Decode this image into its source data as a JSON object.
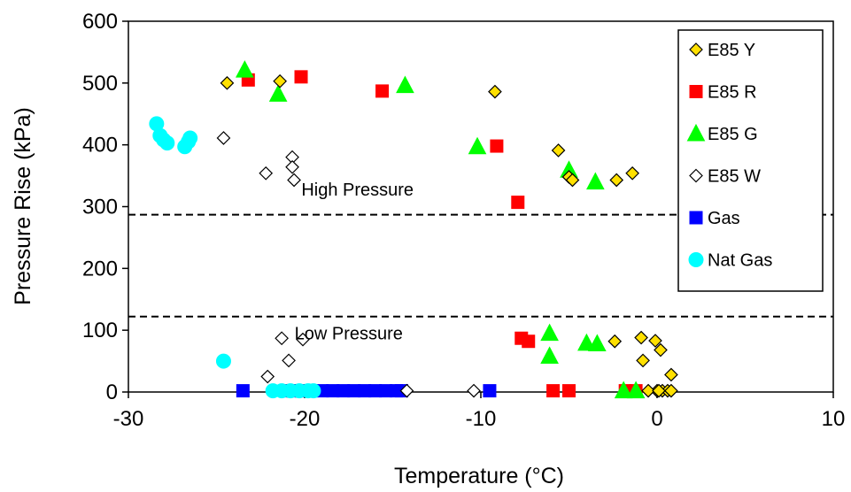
{
  "chart_data": {
    "type": "scatter",
    "title": "",
    "xlabel": "Temperature (°C)",
    "ylabel": "Pressure Rise (kPa)",
    "xlim": [
      -30,
      10
    ],
    "ylim": [
      0,
      600
    ],
    "xticks": [
      -30,
      -20,
      -10,
      0,
      10
    ],
    "yticks": [
      0,
      100,
      200,
      300,
      400,
      500,
      600
    ],
    "grid": false,
    "legend_position": "top-right",
    "reference_lines": [
      {
        "y": 287,
        "style": "dashed"
      },
      {
        "y": 122,
        "style": "dashed"
      }
    ],
    "annotations": [
      {
        "text": "High Pressure",
        "x": -17,
        "y": 318
      },
      {
        "text": "Low Pressure",
        "x": -17.5,
        "y": 85
      }
    ],
    "series": [
      {
        "name": "E85 Y",
        "marker": "diamond",
        "color": "#FFE000",
        "stroke": "#000000",
        "points": [
          [
            -24.4,
            500
          ],
          [
            -21.4,
            503
          ],
          [
            -9.2,
            486
          ],
          [
            -5.6,
            391
          ],
          [
            -5.0,
            348
          ],
          [
            -4.8,
            343
          ],
          [
            -2.3,
            343
          ],
          [
            -1.4,
            354
          ],
          [
            -2.4,
            82
          ],
          [
            -0.9,
            88
          ],
          [
            -0.1,
            83
          ],
          [
            0.2,
            68
          ],
          [
            -0.8,
            51
          ],
          [
            0.8,
            28
          ],
          [
            0.0,
            2
          ],
          [
            0.3,
            2
          ],
          [
            0.6,
            2
          ],
          [
            0.8,
            2
          ],
          [
            -0.5,
            2
          ],
          [
            0.1,
            2
          ]
        ]
      },
      {
        "name": "E85 R",
        "marker": "square",
        "color": "#FF0000",
        "stroke": "#FF0000",
        "points": [
          [
            -23.2,
            505
          ],
          [
            -20.2,
            510
          ],
          [
            -15.6,
            487
          ],
          [
            -9.1,
            398
          ],
          [
            -7.9,
            307
          ],
          [
            -7.7,
            87
          ],
          [
            -7.3,
            82
          ],
          [
            -5.9,
            2
          ],
          [
            -5.0,
            2
          ],
          [
            -1.8,
            2
          ],
          [
            -1.2,
            2
          ]
        ]
      },
      {
        "name": "E85 G",
        "marker": "triangle",
        "color": "#00FF00",
        "stroke": "#00FF00",
        "points": [
          [
            -23.4,
            521
          ],
          [
            -21.5,
            482
          ],
          [
            -14.3,
            496
          ],
          [
            -10.2,
            397
          ],
          [
            -5.0,
            359
          ],
          [
            -3.5,
            340
          ],
          [
            -6.1,
            95
          ],
          [
            -6.1,
            58
          ],
          [
            -4.0,
            79
          ],
          [
            -3.4,
            78
          ],
          [
            -1.9,
            2
          ],
          [
            -1.2,
            2
          ]
        ]
      },
      {
        "name": "E85 W",
        "marker": "diamond",
        "color": "#FFFFFF",
        "stroke": "#000000",
        "points": [
          [
            -24.6,
            411
          ],
          [
            -22.2,
            354
          ],
          [
            -20.7,
            380
          ],
          [
            -20.7,
            364
          ],
          [
            -20.6,
            343
          ],
          [
            -21.3,
            87
          ],
          [
            -20.1,
            85
          ],
          [
            -20.9,
            51
          ],
          [
            -22.1,
            25
          ],
          [
            -21.0,
            2
          ],
          [
            -20.5,
            2
          ],
          [
            -20.0,
            2
          ],
          [
            -19.5,
            2
          ],
          [
            -14.2,
            2
          ],
          [
            -10.4,
            2
          ]
        ]
      },
      {
        "name": "Gas",
        "marker": "square",
        "color": "#0000FF",
        "stroke": "#0000FF",
        "points": [
          [
            -23.5,
            2
          ],
          [
            -20.8,
            2
          ],
          [
            -20.2,
            2
          ],
          [
            -19.6,
            2
          ],
          [
            -19.0,
            2
          ],
          [
            -18.4,
            2
          ],
          [
            -17.8,
            2
          ],
          [
            -17.2,
            2
          ],
          [
            -16.6,
            2
          ],
          [
            -16.0,
            2
          ],
          [
            -15.4,
            2
          ],
          [
            -14.8,
            2
          ],
          [
            -14.5,
            2
          ],
          [
            -9.5,
            2
          ]
        ]
      },
      {
        "name": "Nat Gas",
        "marker": "circle",
        "color": "#00FFFF",
        "stroke": "#00FFFF",
        "points": [
          [
            -28.4,
            434
          ],
          [
            -28.2,
            415
          ],
          [
            -28.0,
            408
          ],
          [
            -27.8,
            403
          ],
          [
            -26.8,
            397
          ],
          [
            -26.6,
            405
          ],
          [
            -26.5,
            411
          ],
          [
            -24.6,
            50
          ],
          [
            -21.8,
            2
          ],
          [
            -21.3,
            2
          ],
          [
            -20.8,
            2
          ],
          [
            -20.3,
            2
          ],
          [
            -19.8,
            2
          ],
          [
            -19.5,
            2
          ]
        ]
      }
    ]
  }
}
